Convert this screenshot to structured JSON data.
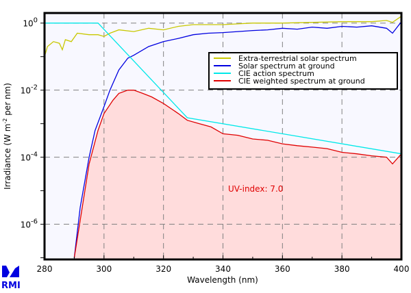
{
  "chart_data": {
    "type": "line",
    "xlabel": "Wavelength (nm)",
    "ylabel": "Irradiance (W m",
    "ylabel_sup": "-2",
    "ylabel_tail": " per nm)",
    "xlim": [
      280,
      400
    ],
    "ylim": [
      8.9e-08,
      2.0
    ],
    "yscale": "log",
    "grid": true,
    "legend_position": "top-right",
    "xticks": [
      280,
      300,
      320,
      340,
      360,
      380,
      400
    ],
    "xtick_labels": [
      "280",
      "300",
      "320",
      "340",
      "360",
      "380",
      "400"
    ],
    "yticks": [
      {
        "base": "10",
        "exp": "0",
        "value": 1
      },
      {
        "base": "10",
        "exp": "-2",
        "value": 0.01
      },
      {
        "base": "10",
        "exp": "-4",
        "value": 0.0001
      },
      {
        "base": "10",
        "exp": "-6",
        "value": 1e-06
      }
    ],
    "annotation": "UV-index: 7.0",
    "series": [
      {
        "name": "Extra-terrestrial solar spectrum",
        "color": "#c8c800",
        "x": [
          280,
          281,
          283,
          285,
          286,
          287,
          289,
          291,
          295,
          298,
          300,
          302,
          305,
          310,
          315,
          320,
          325,
          330,
          340,
          350,
          360,
          370,
          380,
          390,
          395,
          397,
          400
        ],
        "y": [
          0.1,
          0.2,
          0.28,
          0.25,
          0.16,
          0.32,
          0.28,
          0.5,
          0.45,
          0.45,
          0.4,
          0.5,
          0.63,
          0.56,
          0.7,
          0.63,
          0.8,
          0.9,
          0.9,
          1.0,
          1.0,
          1.05,
          1.1,
          1.1,
          1.2,
          1.05,
          1.6
        ]
      },
      {
        "name": "Solar spectrum at ground",
        "color": "#0000e0",
        "x": [
          290,
          292,
          295,
          297,
          300,
          302,
          305,
          308,
          310,
          315,
          320,
          325,
          330,
          335,
          340,
          345,
          350,
          355,
          360,
          365,
          370,
          375,
          380,
          385,
          390,
          395,
          397,
          400
        ],
        "y": [
          1e-07,
          3.2e-06,
          0.0001,
          0.00063,
          0.0032,
          0.01,
          0.04,
          0.09,
          0.11,
          0.2,
          0.28,
          0.35,
          0.45,
          0.5,
          0.52,
          0.56,
          0.6,
          0.63,
          0.7,
          0.66,
          0.76,
          0.7,
          0.8,
          0.76,
          0.83,
          0.7,
          0.5,
          1.1
        ]
      },
      {
        "name": "CIE action spectrum",
        "color": "#00e8e8",
        "x": [
          280,
          298,
          328,
          400
        ],
        "y": [
          1,
          1,
          0.0015,
          0.000126
        ]
      },
      {
        "name": "CIE weighted spectrum at ground",
        "color": "#e00000",
        "x": [
          290,
          295,
          298,
          300,
          303,
          305,
          308,
          310,
          313,
          316,
          320,
          325,
          328,
          332,
          336,
          340,
          345,
          350,
          355,
          360,
          365,
          370,
          375,
          380,
          385,
          390,
          395,
          397,
          400
        ],
        "y": [
          1e-07,
          6.3e-05,
          0.00063,
          0.002,
          0.005,
          0.008,
          0.01,
          0.01,
          0.008,
          0.0063,
          0.004,
          0.002,
          0.00126,
          0.001,
          0.0008,
          0.0005,
          0.00045,
          0.00035,
          0.00032,
          0.00025,
          0.00022,
          0.0002,
          0.00018,
          0.00014,
          0.000126,
          0.00011,
          0.0001,
          6.3e-05,
          0.000126
        ]
      }
    ]
  },
  "logo": "RMI"
}
